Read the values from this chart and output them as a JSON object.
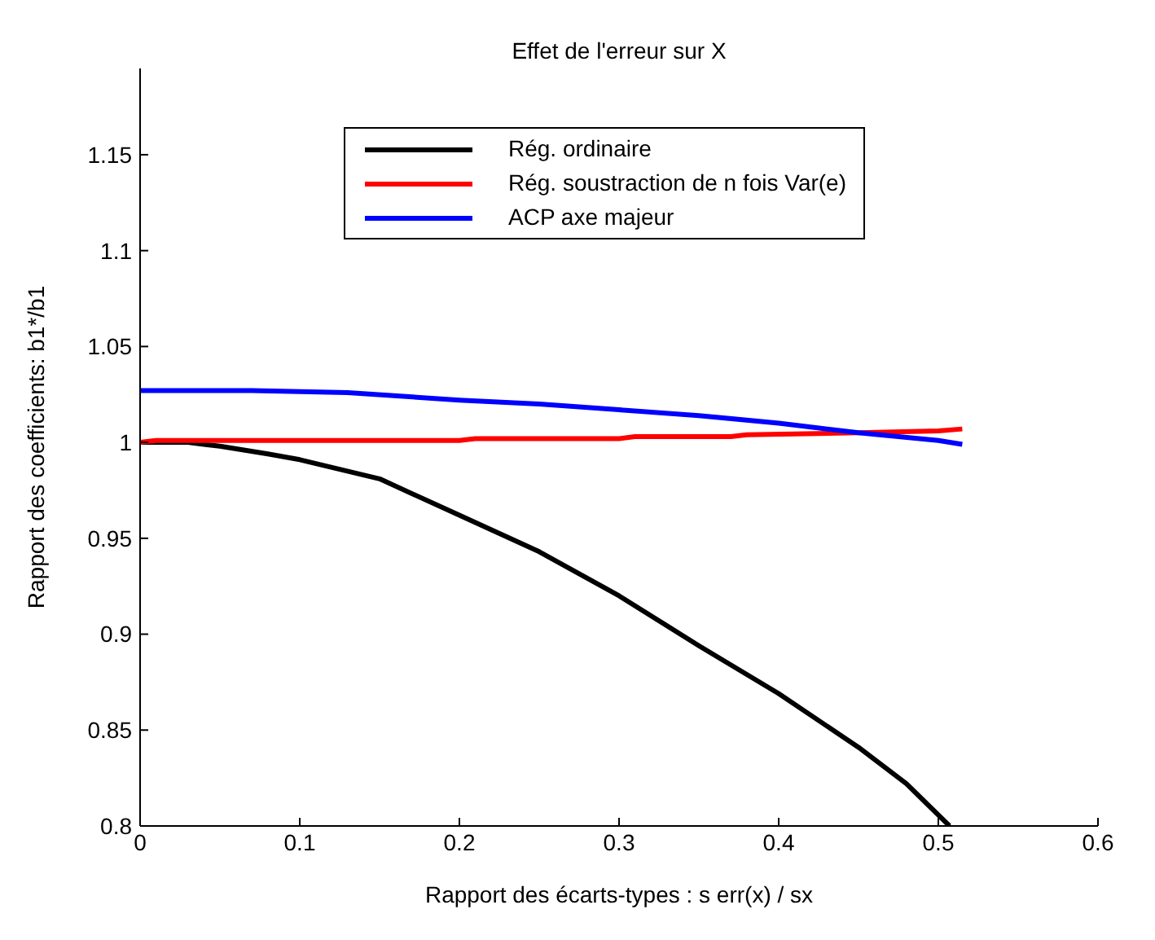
{
  "chart_data": {
    "type": "line",
    "title": "Effet de l'erreur sur X",
    "xlabel": "Rapport des écarts-types : s err(x) / sx",
    "ylabel": "Rapport des coefficients: b1*/b1",
    "xlim": [
      0,
      0.6
    ],
    "xticks": [
      0,
      0.1,
      0.2,
      0.3,
      0.4,
      0.5,
      0.6
    ],
    "ylim": [
      0.8,
      1.195
    ],
    "yticks": [
      0.8,
      0.85,
      0.9,
      0.95,
      1,
      1.05,
      1.1,
      1.15
    ],
    "grid": false,
    "legend": "top right",
    "marker": "none",
    "line_style": "solid",
    "series": [
      {
        "name": "Rég. ordinaire",
        "color": "#000000",
        "x": [
          0,
          0.03,
          0.05,
          0.08,
          0.1,
          0.15,
          0.2,
          0.25,
          0.3,
          0.35,
          0.4,
          0.45,
          0.48,
          0.507
        ],
        "values": [
          1,
          1,
          0.998,
          0.994,
          0.991,
          0.981,
          0.962,
          0.943,
          0.92,
          0.894,
          0.869,
          0.841,
          0.822,
          0.8
        ]
      },
      {
        "name": "Rég. soustraction de n fois Var(e)",
        "color": "#ff0000",
        "x": [
          0,
          0.01,
          0.2,
          0.21,
          0.3,
          0.31,
          0.37,
          0.38,
          0.45,
          0.5,
          0.515
        ],
        "values": [
          1,
          1.001,
          1.001,
          1.002,
          1.002,
          1.003,
          1.003,
          1.004,
          1.005,
          1.006,
          1.007
        ]
      },
      {
        "name": "ACP axe majeur",
        "color": "#0000ff",
        "x": [
          0,
          0.07,
          0.13,
          0.2,
          0.25,
          0.3,
          0.35,
          0.4,
          0.45,
          0.5,
          0.515
        ],
        "values": [
          1.027,
          1.027,
          1.026,
          1.022,
          1.02,
          1.017,
          1.014,
          1.01,
          1.005,
          1.001,
          0.999
        ]
      }
    ]
  }
}
